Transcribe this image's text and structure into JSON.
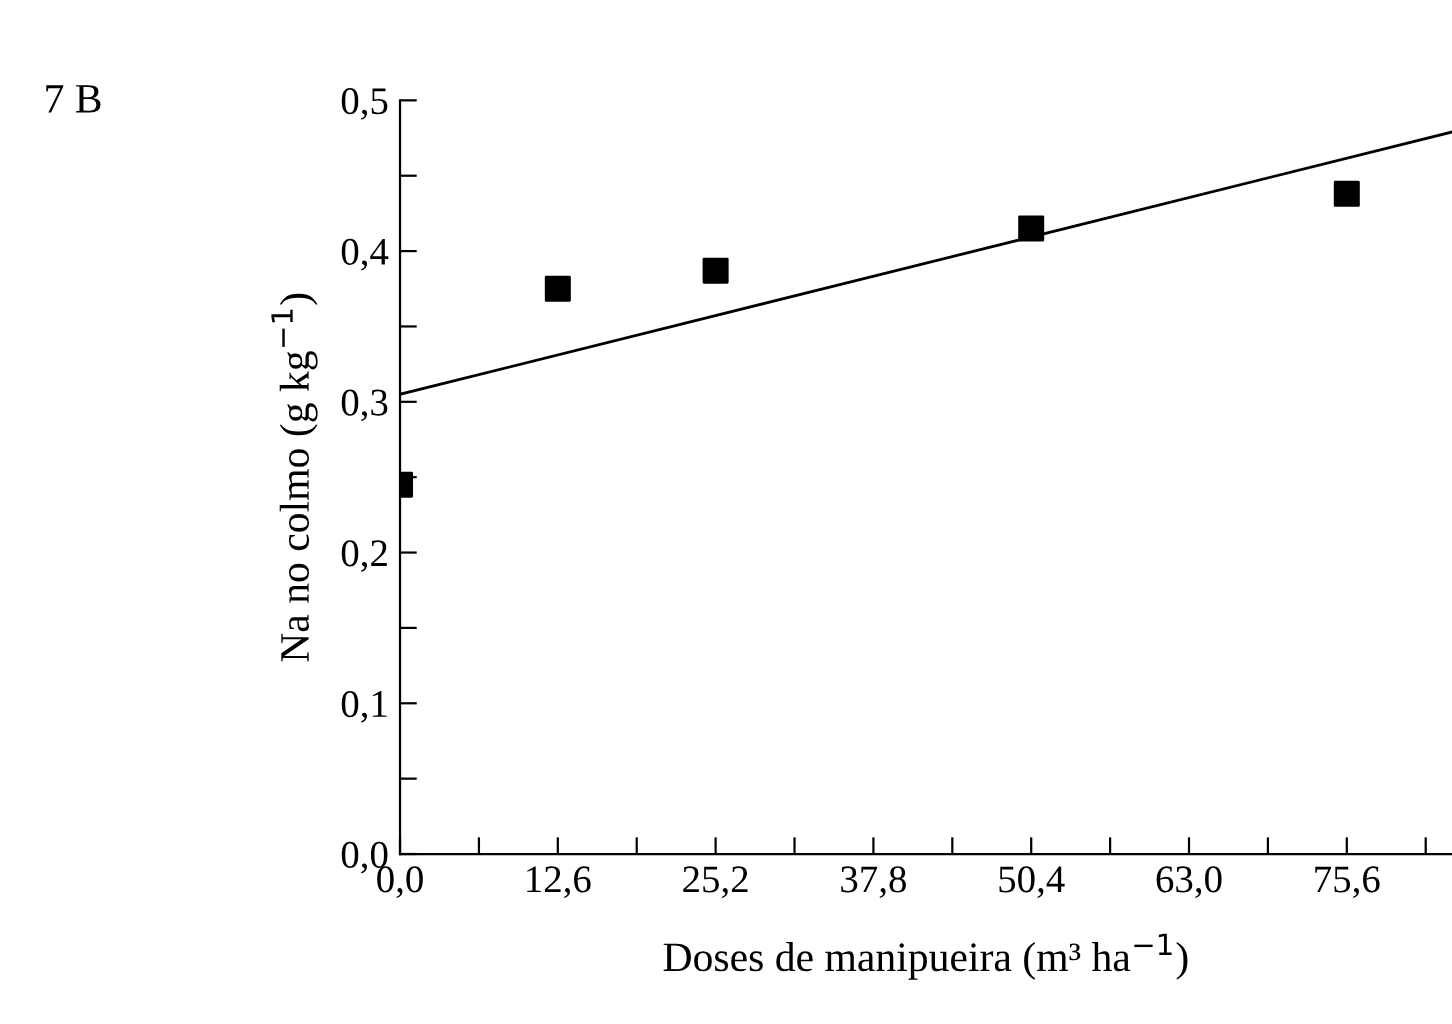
{
  "chart_data": {
    "type": "scatter",
    "xlabel": "Doses de manipueira (m³ ha$^{−1}$)",
    "ylabel": "Na no colmo (g kg$^{−1}$)",
    "annotations": [
      "7 B"
    ],
    "series": [
      {
        "color": "#000000",
        "marker": "square",
        "x": [
          0,
          12.6,
          25.2,
          50.4,
          75.6
        ],
        "values": [
          0.245,
          0.375,
          0.387,
          0.415,
          0.438
        ]
      },
      {
        "type": "line",
        "color": "#000000",
        "marker": "none",
        "line_style": "solid",
        "x": [
          0,
          84
        ],
        "values": [
          0.305,
          0.479
        ]
      }
    ],
    "xlim": [
      0,
      84
    ],
    "ylim": [
      0,
      0.5
    ],
    "xticks": [
      {
        "value": 0,
        "label": "0,0"
      },
      {
        "value": 6.3,
        "label": null
      },
      {
        "value": 12.6,
        "label": "12,6"
      },
      {
        "value": 18.9,
        "label": null
      },
      {
        "value": 25.2,
        "label": "25,2"
      },
      {
        "value": 31.5,
        "label": null
      },
      {
        "value": 37.8,
        "label": "37,8"
      },
      {
        "value": 44.1,
        "label": null
      },
      {
        "value": 50.4,
        "label": "50,4"
      },
      {
        "value": 56.7,
        "label": null
      },
      {
        "value": 63.0,
        "label": "63,0"
      },
      {
        "value": 69.3,
        "label": null
      },
      {
        "value": 75.6,
        "label": "75,6"
      },
      {
        "value": 81.9,
        "label": null
      }
    ],
    "yticks": [
      {
        "value": 0,
        "label": "0,0"
      },
      {
        "value": 0.05,
        "label": null
      },
      {
        "value": 0.1,
        "label": "0,1"
      },
      {
        "value": 0.15,
        "label": null
      },
      {
        "value": 0.2,
        "label": "0,2"
      },
      {
        "value": 0.25,
        "label": null
      },
      {
        "value": 0.3,
        "label": "0,3"
      },
      {
        "value": 0.35,
        "label": null
      },
      {
        "value": 0.4,
        "label": "0,4"
      },
      {
        "value": 0.45,
        "label": null
      },
      {
        "value": 0.5,
        "label": "0,5"
      }
    ],
    "grid": false,
    "legend": false
  }
}
